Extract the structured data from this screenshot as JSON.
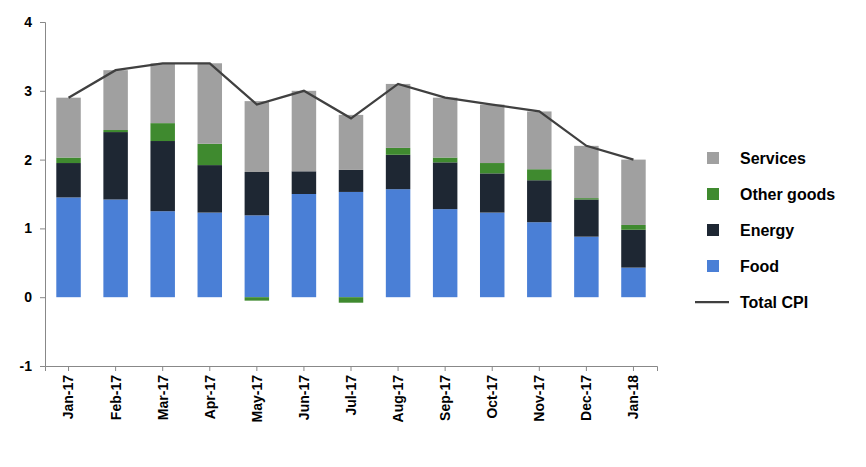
{
  "chart_data": {
    "type": "bar",
    "stacked": true,
    "legend": "right",
    "categories": [
      "Jan-17",
      "Feb-17",
      "Mar-17",
      "Apr-17",
      "May-17",
      "Jun-17",
      "Jul-17",
      "Aug-17",
      "Sep-17",
      "Oct-17",
      "Nov-17",
      "Dec-17",
      "Jan-18"
    ],
    "ylim": [
      -1,
      4
    ],
    "yticks": [
      -1,
      0,
      1,
      2,
      3,
      4
    ],
    "series": [
      {
        "name": "Food",
        "color": "#4a7fd6",
        "values": [
          1.45,
          1.42,
          1.25,
          1.23,
          1.19,
          1.5,
          1.53,
          1.57,
          1.28,
          1.23,
          1.09,
          0.88,
          0.43
        ]
      },
      {
        "name": "Energy",
        "color": "#1e2733",
        "values": [
          0.5,
          0.98,
          1.02,
          0.69,
          0.63,
          0.33,
          0.32,
          0.5,
          0.68,
          0.57,
          0.61,
          0.54,
          0.55
        ]
      },
      {
        "name": "Other goods",
        "color": "#3f8a2f",
        "values": [
          0.08,
          0.03,
          0.26,
          0.31,
          -0.05,
          0.0,
          -0.08,
          0.1,
          0.07,
          0.15,
          0.16,
          0.02,
          0.07
        ]
      },
      {
        "name": "Services",
        "color": "#a0a0a0",
        "values": [
          0.87,
          0.87,
          0.87,
          1.17,
          1.03,
          1.17,
          0.8,
          0.93,
          0.87,
          0.85,
          0.84,
          0.76,
          0.95
        ]
      },
      {
        "name": "Total CPI",
        "type": "line",
        "color": "#404040",
        "values": [
          2.9,
          3.3,
          3.4,
          3.4,
          2.8,
          3.0,
          2.6,
          3.1,
          2.9,
          2.8,
          2.7,
          2.2,
          2.0
        ]
      }
    ]
  }
}
